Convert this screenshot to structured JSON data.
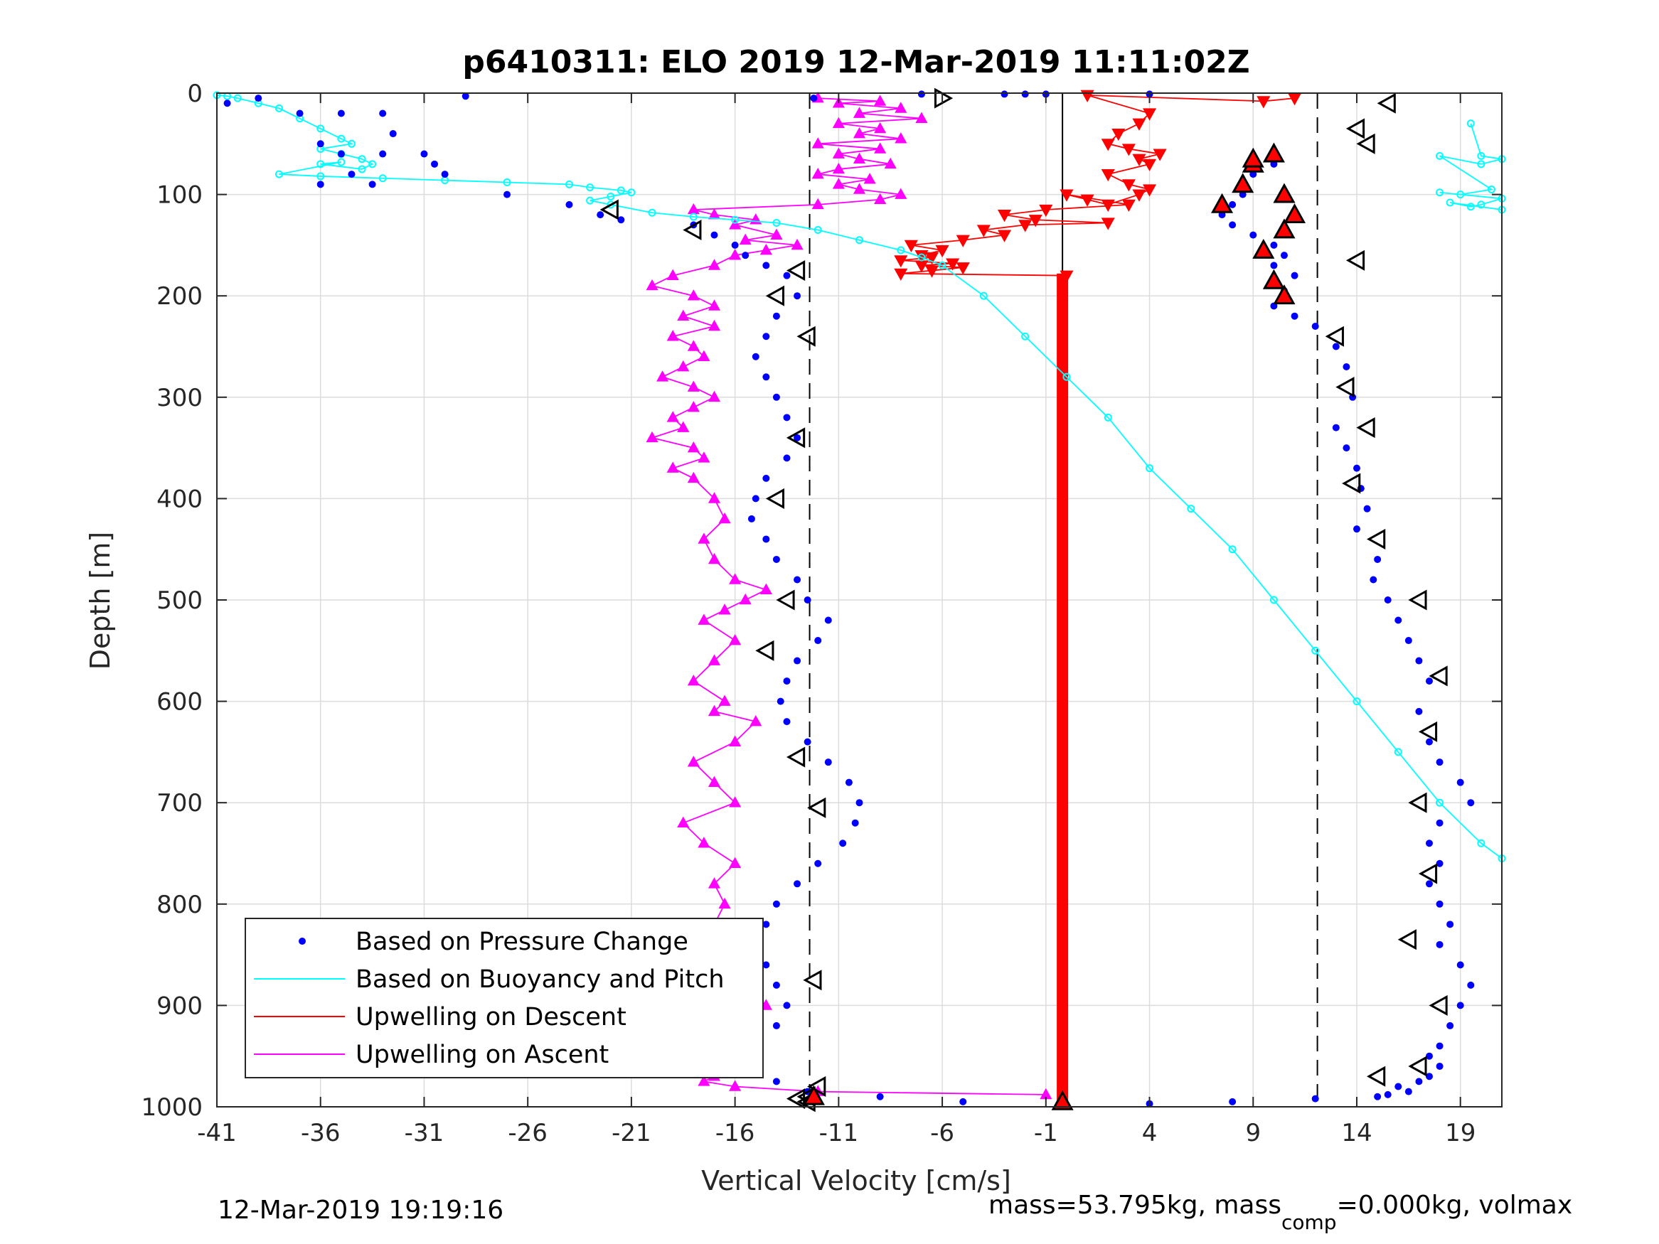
{
  "chart_data": {
    "type": "scatter",
    "title": "p6410311: ELO 2019 12-Mar-2019 11:11:02Z",
    "xlabel": "Vertical Velocity [cm/s]",
    "ylabel": "Depth [m]",
    "xlim": [
      -41,
      21
    ],
    "ylim": [
      1000,
      0
    ],
    "y_reversed": true,
    "grid": true,
    "x_ticks": [
      -41,
      -36,
      -31,
      -26,
      -21,
      -16,
      -11,
      -6,
      -1,
      4,
      9,
      14,
      19
    ],
    "y_ticks": [
      0,
      100,
      200,
      300,
      400,
      500,
      600,
      700,
      800,
      900,
      1000
    ],
    "x_tick_labels": [
      "-41",
      "-36",
      "-31",
      "-26",
      "-21",
      "-16",
      "-11",
      "-6",
      "-1",
      "4",
      "9",
      "14",
      "19"
    ],
    "y_tick_labels": [
      "0",
      "100",
      "200",
      "300",
      "400",
      "500",
      "600",
      "700",
      "800",
      "900",
      "1000"
    ],
    "legend_location": "bottom-left",
    "reference_lines": {
      "dashed_x": [
        -12.4,
        12.1
      ],
      "solid_x": [
        -0.2
      ]
    },
    "colors": {
      "pressure": "#0000ff",
      "buoyancy": "#00ffff",
      "descent": "#ff0000",
      "ascent": "#ff00ff"
    },
    "series": [
      {
        "name": "Based on Pressure Change",
        "style": "dots",
        "descent_x": [
          -29,
          -12.2,
          -7,
          -3,
          -2,
          -1,
          4,
          10,
          9,
          8.5,
          8,
          7.5,
          8,
          9,
          10,
          10.5,
          10,
          11,
          10.5,
          10,
          11,
          12,
          13,
          13.5,
          13.8,
          13,
          13.5,
          14,
          14.2,
          14.5,
          14,
          15,
          14.8,
          15.5,
          16,
          16.5,
          17,
          17.5,
          17,
          17.5,
          18,
          19,
          19.5,
          18,
          17.5,
          18,
          17.5,
          18,
          18.5,
          18,
          19,
          19.5,
          19,
          18.5,
          18,
          17.5,
          18,
          17.5,
          17,
          16,
          16.5,
          15.5,
          15,
          12,
          8,
          4
        ],
        "descent_y": [
          3,
          5,
          1,
          1,
          1,
          1,
          1,
          70,
          80,
          100,
          110,
          120,
          130,
          140,
          150,
          160,
          170,
          180,
          195,
          210,
          220,
          230,
          250,
          270,
          300,
          330,
          350,
          370,
          390,
          410,
          430,
          460,
          480,
          500,
          520,
          540,
          560,
          580,
          610,
          640,
          660,
          680,
          700,
          720,
          740,
          760,
          780,
          800,
          820,
          840,
          860,
          880,
          900,
          920,
          940,
          950,
          960,
          970,
          975,
          980,
          985,
          988,
          990,
          992,
          995,
          997
        ],
        "ascent_x": [
          -40.5,
          -39,
          -37,
          -36,
          -35,
          -34.5,
          -33.5,
          -33,
          -32.5,
          -31,
          -30.5,
          -36,
          -35,
          -33,
          -30,
          -27,
          -24,
          -22.5,
          -21.5,
          -18,
          -17,
          -16,
          -15.5,
          -14.5,
          -13.5,
          -13,
          -14,
          -14.5,
          -15,
          -14.5,
          -14,
          -13.5,
          -13,
          -13.5,
          -14.5,
          -15,
          -15.2,
          -14.5,
          -14,
          -13,
          -12.5,
          -11.5,
          -12,
          -13,
          -13.5,
          -13.8,
          -13.5,
          -12.5,
          -11.5,
          -10.5,
          -10,
          -10.2,
          -10.8,
          -12,
          -13,
          -14,
          -14.5,
          -14.8,
          -14.5,
          -14,
          -13.5,
          -14,
          -15,
          -16,
          -14,
          -12.5,
          -9,
          -5
        ],
        "ascent_y": [
          10,
          5,
          20,
          50,
          60,
          80,
          90,
          20,
          40,
          60,
          70,
          90,
          20,
          60,
          80,
          100,
          110,
          120,
          125,
          130,
          140,
          150,
          160,
          170,
          180,
          200,
          220,
          240,
          260,
          280,
          300,
          320,
          340,
          360,
          380,
          400,
          420,
          440,
          460,
          480,
          500,
          520,
          540,
          560,
          580,
          600,
          620,
          640,
          660,
          680,
          700,
          720,
          740,
          760,
          780,
          800,
          820,
          840,
          860,
          880,
          900,
          920,
          940,
          960,
          975,
          985,
          990,
          995
        ]
      },
      {
        "name": "Based on Buoyancy and Pitch",
        "style": "line-circles",
        "x": [
          -41,
          -40.5,
          -40,
          -39,
          -38,
          -37,
          -36,
          -35,
          -34.5,
          -36,
          -35,
          -34,
          -33.5,
          -34,
          -36,
          -35,
          -38,
          -36,
          -33,
          -30,
          -27,
          -24,
          -23,
          -21.5,
          -21,
          -22,
          -23,
          -22,
          -20,
          -18,
          -16,
          -14,
          -12,
          -10,
          -8,
          -7,
          -6,
          -4,
          -2,
          0,
          2,
          4,
          6,
          8,
          10,
          12,
          14,
          16,
          18,
          20,
          21
        ],
        "y": [
          2,
          3,
          5,
          10,
          15,
          25,
          35,
          45,
          50,
          55,
          60,
          65,
          70,
          75,
          70,
          68,
          80,
          82,
          84,
          86,
          88,
          90,
          93,
          96,
          98,
          102,
          106,
          110,
          118,
          122,
          125,
          128,
          135,
          145,
          155,
          162,
          170,
          200,
          240,
          280,
          320,
          370,
          410,
          450,
          500,
          550,
          600,
          650,
          700,
          740,
          755
        ],
        "x2": [
          19.5,
          20,
          21,
          20,
          18,
          20.5,
          19,
          18,
          21,
          20,
          19.5,
          18.5,
          21
        ],
        "y2": [
          30,
          62,
          65,
          70,
          62,
          95,
          100,
          98,
          104,
          110,
          112,
          108,
          115
        ]
      },
      {
        "name": "Upwelling on Descent",
        "style": "line-triangles-down",
        "x": [
          11,
          9.5,
          1,
          4,
          3.5,
          2.5,
          2,
          3,
          4.5,
          3.5,
          4,
          2,
          3,
          4,
          3.5,
          2,
          1,
          0,
          3,
          -1,
          -3,
          -1.5,
          2,
          -2,
          -4,
          -3,
          -5,
          -7.5,
          -6,
          -7,
          -6.5,
          -8,
          -5.5,
          -7,
          -5,
          -6.5,
          -8,
          0
        ],
        "y": [
          5,
          8,
          2,
          20,
          30,
          40,
          50,
          55,
          60,
          65,
          70,
          80,
          90,
          95,
          100,
          110,
          105,
          100,
          110,
          115,
          120,
          125,
          128,
          130,
          135,
          140,
          145,
          150,
          155,
          160,
          162,
          165,
          168,
          170,
          172,
          175,
          178,
          180
        ]
      },
      {
        "name": "Upwelling on Ascent",
        "style": "line-triangles-up",
        "x": [
          -12,
          -9,
          -11,
          -8,
          -10,
          -7,
          -11,
          -9,
          -10,
          -8,
          -12,
          -9,
          -11,
          -10,
          -8.5,
          -11,
          -12,
          -9.5,
          -11,
          -10,
          -8,
          -9,
          -12,
          -18,
          -17,
          -15,
          -16,
          -14,
          -15.5,
          -13,
          -14.5,
          -16,
          -17,
          -19,
          -20,
          -18,
          -17,
          -18.5,
          -17,
          -19,
          -18,
          -17.5,
          -18.5,
          -19.5,
          -18,
          -17,
          -18,
          -19,
          -18.5,
          -20,
          -18,
          -17.5,
          -19,
          -18,
          -17,
          -16.5,
          -17.5,
          -17,
          -16,
          -14.5,
          -15.5,
          -16.5,
          -17.5,
          -16,
          -17,
          -18,
          -16.5,
          -17,
          -15,
          -16,
          -18,
          -17,
          -16,
          -18.5,
          -17.5,
          -16,
          -17,
          -16.5,
          -17,
          -18,
          -17.5,
          -16.5,
          -17,
          -16,
          -15.5,
          -14.5,
          -16,
          -17,
          -16.5,
          -18,
          -20,
          -17,
          -17.5,
          -16,
          -12,
          -1
        ],
        "y": [
          5,
          8,
          10,
          15,
          20,
          25,
          30,
          35,
          40,
          45,
          50,
          55,
          60,
          65,
          70,
          75,
          80,
          85,
          90,
          95,
          100,
          105,
          110,
          115,
          120,
          125,
          130,
          140,
          145,
          150,
          155,
          160,
          170,
          180,
          190,
          200,
          210,
          220,
          230,
          240,
          250,
          260,
          270,
          280,
          290,
          300,
          310,
          320,
          330,
          340,
          350,
          360,
          370,
          380,
          400,
          420,
          440,
          460,
          480,
          490,
          500,
          510,
          520,
          540,
          560,
          580,
          600,
          610,
          620,
          640,
          660,
          680,
          700,
          720,
          740,
          760,
          780,
          800,
          820,
          830,
          840,
          850,
          860,
          870,
          880,
          900,
          920,
          930,
          940,
          955,
          960,
          970,
          975,
          980,
          985,
          988
        ]
      }
    ],
    "markers": {
      "open_triangles_left_x": [
        15.5,
        14,
        14.5,
        14,
        -13,
        -14,
        -12.5,
        -18,
        -22,
        -13,
        -14,
        -13.5,
        -14.5,
        13,
        13.5,
        14.5,
        13.8,
        15,
        17,
        18,
        17.5,
        17,
        17.5,
        16.5,
        18,
        17,
        15,
        -13,
        -12,
        -12.2,
        -12,
        -12.5,
        -13,
        -12.5
      ],
      "open_triangles_left_y": [
        10,
        35,
        50,
        165,
        175,
        200,
        240,
        135,
        115,
        340,
        400,
        500,
        550,
        240,
        290,
        330,
        385,
        440,
        500,
        575,
        630,
        700,
        770,
        835,
        900,
        960,
        970,
        655,
        705,
        875,
        980,
        990,
        992,
        995
      ],
      "open_triangles_right_x": [
        -6
      ],
      "open_triangles_right_y": [
        5
      ],
      "red_triangles_x": [
        10,
        9,
        8.5,
        7.5,
        10.5,
        11,
        10.5,
        9.5,
        10,
        10.5,
        9,
        -12.2,
        -0.2
      ],
      "red_triangles_y": [
        60,
        70,
        90,
        110,
        100,
        120,
        135,
        155,
        185,
        200,
        65,
        990,
        995
      ]
    },
    "descent_bar": {
      "x": -0.2,
      "y_range": [
        178,
        995
      ]
    }
  },
  "footer": {
    "left": "12-Mar-2019 19:19:16",
    "right_main": "mass=53.795kg, mass",
    "right_sub": "comp",
    "right_rest": "=0.000kg, volmax"
  }
}
